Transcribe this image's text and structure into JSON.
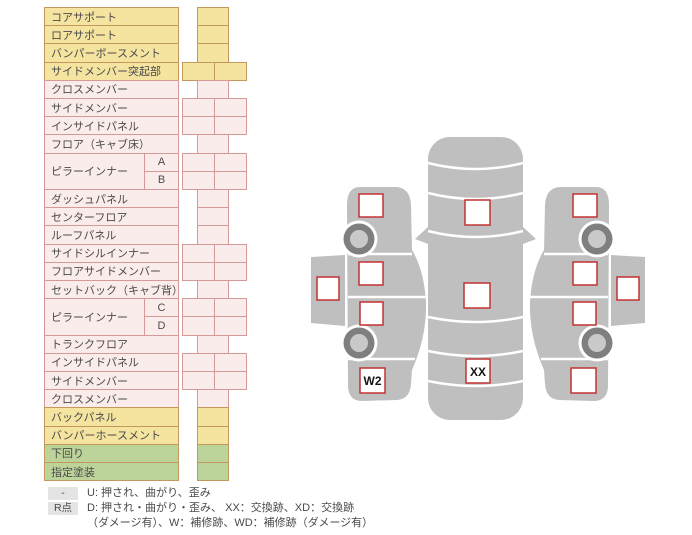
{
  "table": {
    "rows": [
      {
        "label": "コアサポート",
        "color": "yellow",
        "cells": 1
      },
      {
        "label": "ロアサポート",
        "color": "yellow",
        "cells": 1
      },
      {
        "label": "バンパーボースメント",
        "color": "yellow",
        "cells": 1
      },
      {
        "label": "サイドメンバー突起部",
        "color": "yellow",
        "cells": 2
      },
      {
        "label": "クロスメンバー",
        "color": "pink",
        "cells": 1
      },
      {
        "label": "サイドメンバー",
        "color": "pink",
        "cells": 2
      },
      {
        "label": "インサイドパネル",
        "color": "pink",
        "cells": 2
      },
      {
        "label": "フロア（キャブ床）",
        "color": "pink",
        "cells": 1
      },
      {
        "label": "ピラーインナー",
        "sub": "A",
        "span": 2,
        "color": "pink",
        "cells": 2
      },
      {
        "sub": "B",
        "color": "pink",
        "cells": 2
      },
      {
        "label": "ダッシュパネル",
        "color": "pink",
        "cells": 1
      },
      {
        "label": "センターフロア",
        "color": "pink",
        "cells": 1
      },
      {
        "label": "ルーフパネル",
        "color": "pink",
        "cells": 1
      },
      {
        "label": "サイドシルインナー",
        "color": "pink",
        "cells": 2
      },
      {
        "label": "フロアサイドメンバー",
        "color": "pink",
        "cells": 2
      },
      {
        "label": "セットバック（キャブ背）",
        "color": "pink",
        "cells": 1
      },
      {
        "label": "ピラーインナー",
        "sub": "C",
        "span": 2,
        "color": "pink",
        "cells": 2
      },
      {
        "sub": "D",
        "color": "pink",
        "cells": 2
      },
      {
        "label": "トランクフロア",
        "color": "pink",
        "cells": 1
      },
      {
        "label": "インサイドパネル",
        "color": "pink",
        "cells": 2
      },
      {
        "label": "サイドメンバー",
        "color": "pink",
        "cells": 2
      },
      {
        "label": "クロスメンバー",
        "color": "pink",
        "cells": 1
      },
      {
        "label": "バックパネル",
        "color": "yellow",
        "cells": 1
      },
      {
        "label": "バンパーホースメント",
        "color": "yellow",
        "cells": 1
      },
      {
        "label": "下回り",
        "color": "green",
        "cells": 1
      },
      {
        "label": "指定塗装",
        "color": "green",
        "cells": 1
      }
    ]
  },
  "diagram": {
    "markers": {
      "left": {
        "sill": "",
        "fender": "",
        "front_door": "",
        "rear_door": "",
        "rear_fender": "W2"
      },
      "top": {
        "hood": "",
        "roof": "",
        "trunk": "XX"
      },
      "right": {
        "sill": "",
        "fender": "",
        "front_door": "",
        "rear_door": "",
        "rear_fender": ""
      }
    }
  },
  "legend": {
    "rows": [
      {
        "badge": "-",
        "text": "U: 押され、曲がり、歪み"
      },
      {
        "badge": "R点",
        "text": "D: 押され・曲がり・歪み、 XX：交換跡、XD：交換跡",
        "text2": "（ダメージ有）、W：補修跡、WD：補修跡（ダメージ有）"
      }
    ]
  },
  "colors": {
    "row_yellow": "#F4E4A0",
    "row_pink": "#FBECEC",
    "row_green": "#BCD49A",
    "border_tan": "#C2985C",
    "border_pink": "#D49A9A",
    "car_body": "#BFBFBF",
    "wheel_ring": "#7F7F7F",
    "wheel_hub": "#C9C9C9",
    "marker_border": "#C23232"
  }
}
